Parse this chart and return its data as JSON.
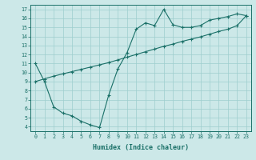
{
  "xlabel": "Humidex (Indice chaleur)",
  "bg_color": "#cce8e8",
  "line_color": "#1a7068",
  "xlim": [
    -0.5,
    23.5
  ],
  "ylim": [
    3.5,
    17.5
  ],
  "xticks": [
    0,
    1,
    2,
    3,
    4,
    5,
    6,
    7,
    8,
    9,
    10,
    11,
    12,
    13,
    14,
    15,
    16,
    17,
    18,
    19,
    20,
    21,
    22,
    23
  ],
  "yticks": [
    4,
    5,
    6,
    7,
    8,
    9,
    10,
    11,
    12,
    13,
    14,
    15,
    16,
    17
  ],
  "line1_x": [
    0,
    1,
    2,
    3,
    4,
    5,
    6,
    7,
    8,
    9,
    10,
    11,
    12,
    13,
    14,
    15,
    16,
    17,
    18,
    19,
    20,
    21,
    22,
    23
  ],
  "line1_y": [
    11.0,
    9.0,
    6.2,
    5.5,
    5.2,
    4.6,
    4.2,
    3.9,
    7.5,
    10.4,
    12.2,
    14.8,
    15.5,
    15.2,
    17.0,
    15.3,
    15.0,
    15.0,
    15.2,
    15.8,
    16.0,
    16.2,
    16.5,
    16.3
  ],
  "line2_x": [
    0,
    1,
    2,
    3,
    4,
    5,
    6,
    7,
    8,
    9,
    10,
    11,
    12,
    13,
    14,
    15,
    16,
    17,
    18,
    19,
    20,
    21,
    22,
    23
  ],
  "line2_y": [
    9.0,
    9.3,
    9.6,
    9.85,
    10.1,
    10.35,
    10.6,
    10.85,
    11.1,
    11.4,
    11.7,
    12.0,
    12.3,
    12.6,
    12.9,
    13.15,
    13.45,
    13.7,
    13.95,
    14.25,
    14.55,
    14.8,
    15.2,
    16.3
  ]
}
